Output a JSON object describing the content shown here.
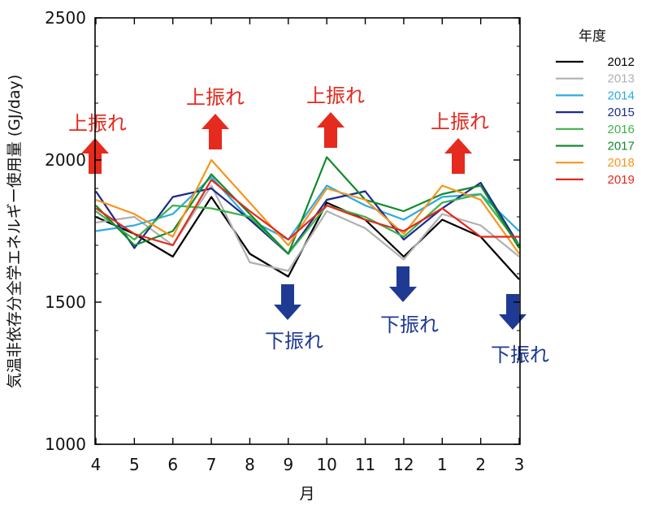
{
  "chart_data": {
    "type": "line",
    "title": "",
    "xlabel": "月",
    "ylabel": "気温非依存分全学エネルギー使用量 (GJ/day)",
    "categories": [
      "4",
      "5",
      "6",
      "7",
      "8",
      "9",
      "10",
      "11",
      "12",
      "1",
      "2",
      "3"
    ],
    "ylim": [
      1000,
      2500
    ],
    "yticks": [
      1000,
      1500,
      2000,
      2500
    ],
    "grid": false,
    "legend": {
      "title": "年度",
      "placement": "right"
    },
    "series": [
      {
        "name": "2012",
        "color": "#000000",
        "values": [
          1800,
          1740,
          1660,
          1870,
          1670,
          1590,
          1850,
          1790,
          1660,
          1790,
          1730,
          1580
        ]
      },
      {
        "name": "2013",
        "color": "#b0b0b0",
        "values": [
          1780,
          1800,
          1700,
          1910,
          1640,
          1610,
          1820,
          1760,
          1650,
          1810,
          1770,
          1660
        ]
      },
      {
        "name": "2014",
        "color": "#29abe2",
        "values": [
          1750,
          1770,
          1810,
          1940,
          1790,
          1720,
          1910,
          1840,
          1790,
          1870,
          1880,
          1750
        ]
      },
      {
        "name": "2015",
        "color": "#1c2a8c",
        "values": [
          1890,
          1690,
          1870,
          1900,
          1790,
          1670,
          1860,
          1890,
          1720,
          1830,
          1920,
          1700
        ]
      },
      {
        "name": "2016",
        "color": "#3cb34a",
        "values": [
          1820,
          1720,
          1840,
          1830,
          1800,
          1670,
          1840,
          1800,
          1730,
          1850,
          1880,
          1700
        ]
      },
      {
        "name": "2017",
        "color": "#128b2b",
        "values": [
          1840,
          1700,
          1750,
          1950,
          1810,
          1670,
          2010,
          1860,
          1820,
          1880,
          1910,
          1690
        ]
      },
      {
        "name": "2018",
        "color": "#f7941d",
        "values": [
          1860,
          1810,
          1730,
          2000,
          1850,
          1700,
          1900,
          1860,
          1740,
          1910,
          1860,
          1670
        ]
      },
      {
        "name": "2019",
        "color": "#e5281c",
        "values": [
          1830,
          1740,
          1700,
          1930,
          1820,
          1720,
          1840,
          1790,
          1750,
          1830,
          1730,
          1730
        ]
      }
    ],
    "annotations": [
      {
        "text": "上振れ",
        "direction": "up",
        "category": "4"
      },
      {
        "text": "上振れ",
        "direction": "up",
        "category": "7"
      },
      {
        "text": "上振れ",
        "direction": "up",
        "category": "10"
      },
      {
        "text": "上振れ",
        "direction": "up",
        "category": "1"
      },
      {
        "text": "下振れ",
        "direction": "down",
        "category": "9"
      },
      {
        "text": "下振れ",
        "direction": "down",
        "category": "12"
      },
      {
        "text": "下振れ",
        "direction": "down",
        "category": "3"
      }
    ],
    "annotation_colors": {
      "up": "#e52a1e",
      "down": "#1f3a93"
    }
  }
}
